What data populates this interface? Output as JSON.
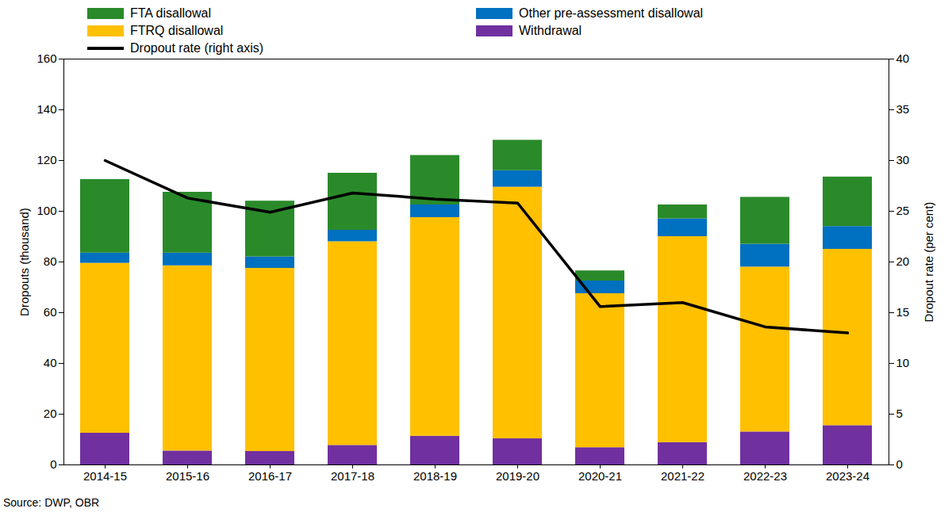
{
  "chart_data": {
    "type": "bar",
    "stacked": true,
    "caption": "Source: DWP, OBR",
    "y_label": "Dropouts (thousand)",
    "y2_label": "Dropout rate (per cent)",
    "categories": [
      "2014-15",
      "2015-16",
      "2016-17",
      "2017-18",
      "2018-19",
      "2019-20",
      "2020-21",
      "2021-22",
      "2022-23",
      "2023-24"
    ],
    "ylim": [
      0,
      160
    ],
    "yticks": [
      0,
      20,
      40,
      60,
      80,
      100,
      120,
      140,
      160
    ],
    "y2lim": [
      0,
      40
    ],
    "y2ticks": [
      0,
      5,
      10,
      15,
      20,
      25,
      30,
      35,
      40
    ],
    "legend": "top",
    "series": [
      {
        "name": "FTA disallowal",
        "type": "bar",
        "color": "#2a8a2a",
        "values": [
          29,
          24,
          22,
          22.5,
          19.5,
          12,
          4,
          5.5,
          18.5,
          19.5
        ]
      },
      {
        "name": "Other pre-assessment disallowal",
        "type": "bar",
        "color": "#0070c0",
        "values": [
          4,
          5,
          4.5,
          4.5,
          5,
          6.5,
          5,
          7,
          9,
          9
        ]
      },
      {
        "name": "FTRQ disallowal",
        "type": "bar",
        "color": "#ffc000",
        "values": [
          67,
          73,
          72.2,
          80.3,
          86.2,
          99.2,
          60.7,
          81.2,
          65,
          69.5
        ]
      },
      {
        "name": "Withdrawal",
        "type": "bar",
        "color": "#7030a0",
        "values": [
          12.5,
          5.5,
          5.3,
          7.7,
          11.3,
          10.3,
          6.8,
          8.8,
          13,
          15.5
        ]
      },
      {
        "name": "Dropout rate (right axis)",
        "type": "line",
        "axis": "y2",
        "color": "#000000",
        "values": [
          30,
          26.3,
          24.9,
          26.8,
          26.2,
          25.8,
          15.6,
          16,
          13.6,
          13
        ]
      }
    ]
  }
}
